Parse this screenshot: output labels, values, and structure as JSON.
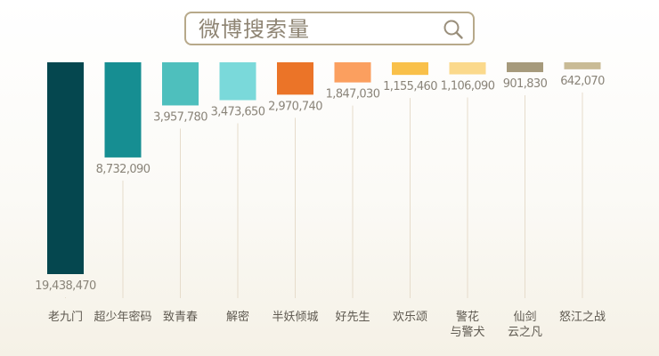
{
  "search": {
    "label": "微博搜索量",
    "icon": "search-icon"
  },
  "chart_data": {
    "type": "bar",
    "title": "微博搜索量",
    "categories": [
      [
        "老九门"
      ],
      [
        "超少年密码"
      ],
      [
        "致青春"
      ],
      [
        "解密"
      ],
      [
        "半妖倾城"
      ],
      [
        "好先生"
      ],
      [
        "欢乐颂"
      ],
      [
        "警花",
        "与警犬"
      ],
      [
        "仙剑",
        "云之凡"
      ],
      [
        "怒江之战"
      ]
    ],
    "values": [
      19438470,
      8732090,
      3957780,
      3473650,
      2970740,
      1847030,
      1155460,
      1106090,
      901830,
      642070
    ],
    "value_labels": [
      "19,438,470",
      "8,732,090",
      "3,957,780",
      "3,473,650",
      "2,970,740",
      "1,847,030",
      "1,155,460",
      "1,106,090",
      "901,830",
      "642,070"
    ],
    "colors": [
      "#05474f",
      "#168e92",
      "#4ebfbd",
      "#7ad9da",
      "#eb7428",
      "#fb9f5f",
      "#f9c04a",
      "#fbd98c",
      "#a69a7c",
      "#c9bb96"
    ],
    "grid": false,
    "legend": "none"
  }
}
